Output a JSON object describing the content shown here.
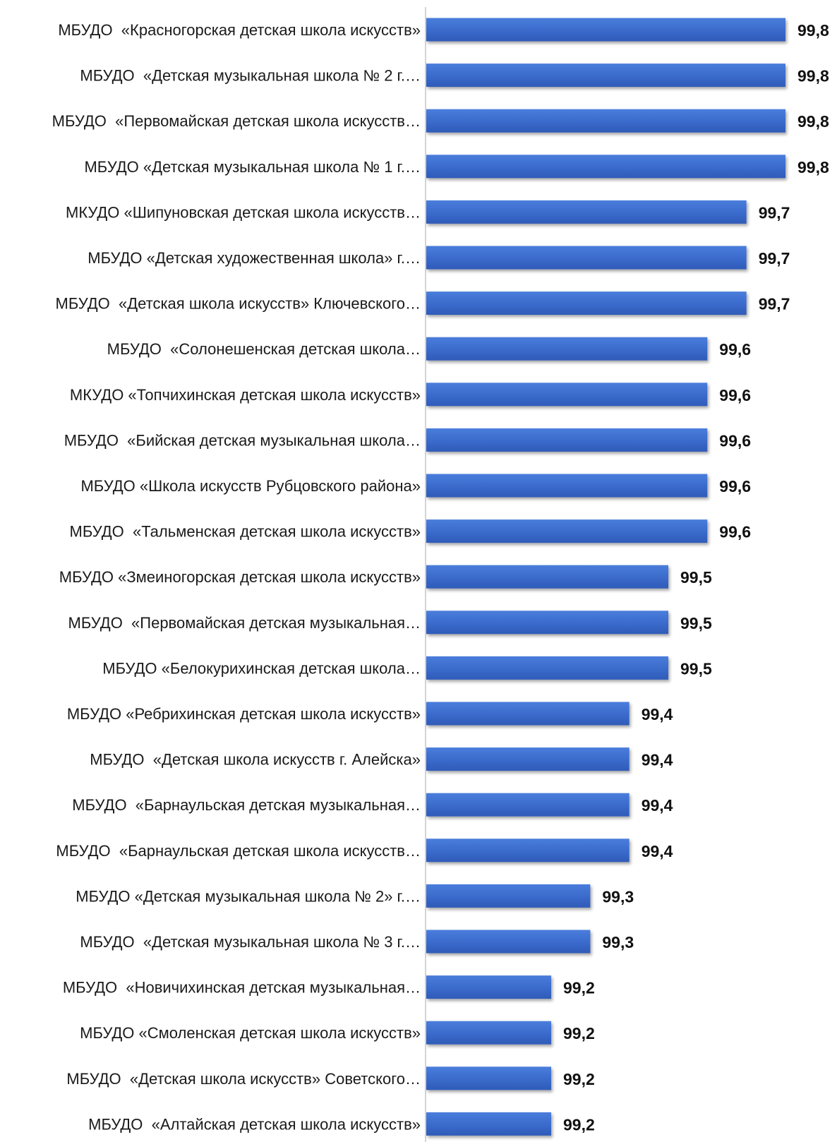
{
  "chart_data": {
    "type": "bar",
    "orientation": "horizontal",
    "title": "",
    "xlabel": "",
    "ylabel": "",
    "xlim": [
      98.88,
      99.8
    ],
    "grid": false,
    "legend": "none",
    "bar_color": "#3e6fd0",
    "categories": [
      "МБУДО  «Красногорская детская школа искусств»",
      "МБУДО  «Детская музыкальная школа № 2 г.…",
      "МБУДО  «Первомайская детская школа искусств…",
      "МБУДО «Детская музыкальная школа № 1 г.…",
      "МКУДО «Шипуновская детская школа искусств…",
      "МБУДО «Детская художественная школа» г.…",
      "МБУДО  «Детская школа искусств» Ключевского…",
      "МБУДО  «Солонешенская детская школа…",
      "МКУДО «Топчихинская детская школа искусств»",
      "МБУДО  «Бийская детская музыкальная школа…",
      "МБУДО «Школа искусств Рубцовского района»",
      "МБУДО  «Тальменская детская школа искусств»",
      "МБУДО «Змеиногорская детская школа искусств»",
      "МБУДО  «Первомайская детская музыкальная…",
      "МБУДО «Белокурихинская детская школа…",
      "МБУДО «Ребрихинская детская школа искусств»",
      "МБУДО  «Детская школа искусств г. Алейска»",
      "МБУДО  «Барнаульская детская музыкальная…",
      "МБУДО  «Барнаульская детская школа искусств…",
      "МБУДО «Детская музыкальная школа № 2» г.…",
      "МБУДО  «Детская музыкальная школа № 3 г.…",
      "МБУДО  «Новичихинская детская музыкальная…",
      "МБУДО «Смоленская детская школа искусств»",
      "МБУДО  «Детская школа искусств» Советского…",
      "МБУДО  «Алтайская детская школа искусств»"
    ],
    "values": [
      99.8,
      99.8,
      99.8,
      99.8,
      99.7,
      99.7,
      99.7,
      99.6,
      99.6,
      99.6,
      99.6,
      99.6,
      99.5,
      99.5,
      99.5,
      99.4,
      99.4,
      99.4,
      99.4,
      99.3,
      99.3,
      99.2,
      99.2,
      99.2,
      99.2
    ],
    "value_labels": [
      "99,8",
      "99,8",
      "99,8",
      "99,8",
      "99,7",
      "99,7",
      "99,7",
      "99,6",
      "99,6",
      "99,6",
      "99,6",
      "99,6",
      "99,5",
      "99,5",
      "99,5",
      "99,4",
      "99,4",
      "99,4",
      "99,4",
      "99,3",
      "99,3",
      "99,2",
      "99,2",
      "99,2",
      "99,2"
    ]
  }
}
